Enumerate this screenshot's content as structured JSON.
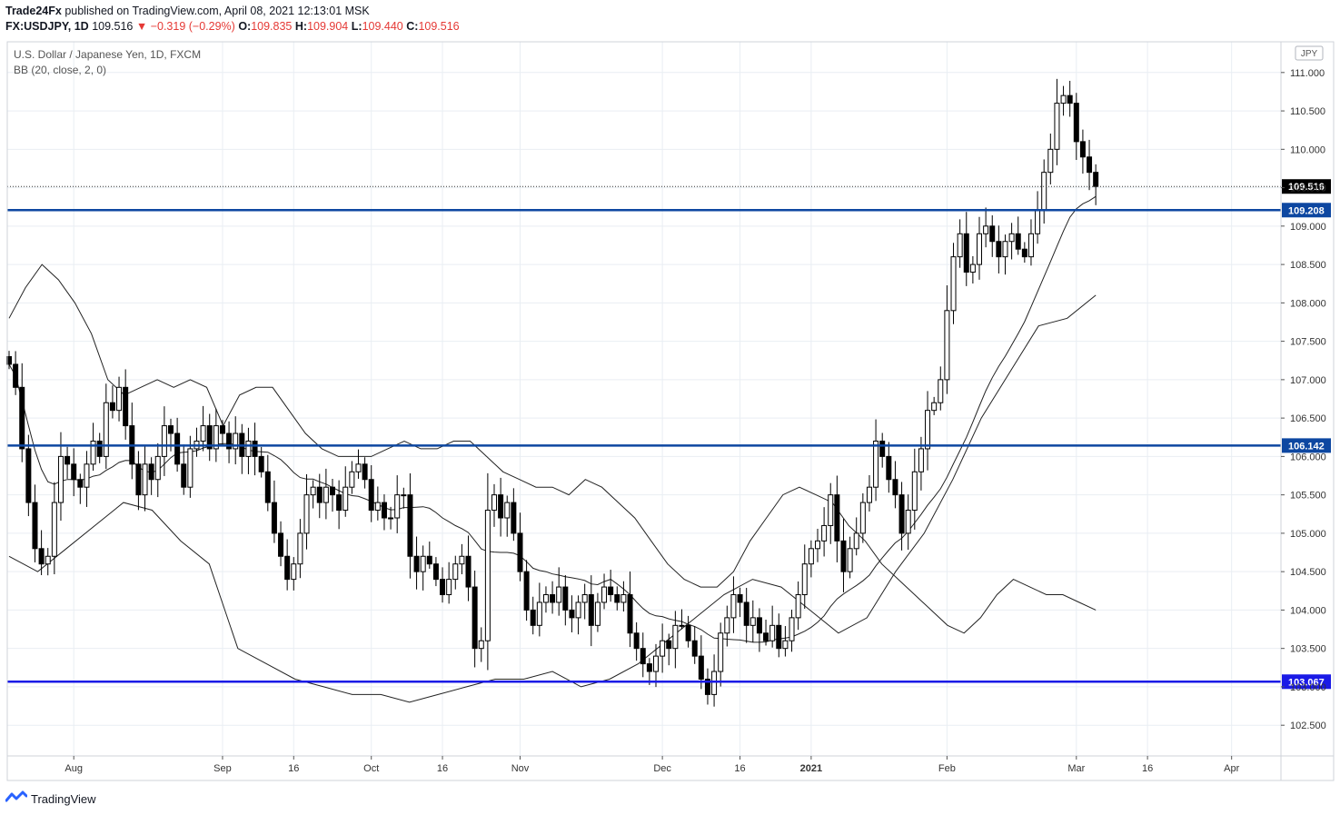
{
  "header": {
    "publisher": "Trade24Fx",
    "published_text": "published on TradingView.com, April 08, 2021 12:13:01 MSK",
    "symbol": "FX:USDJPY, 1D",
    "last": "109.516",
    "change": "▼ −0.319 (−0.29%)",
    "o_label": "O:",
    "o_value": "109.835",
    "h_label": "H:",
    "h_value": "109.904",
    "l_label": "L:",
    "l_value": "109.440",
    "c_label": "C:",
    "c_value": "109.516"
  },
  "legend": {
    "instrument": "U.S. Dollar / Japanese Yen, 1D, FXCM",
    "indicator": "BB (20, close, 2, 0)"
  },
  "footer": {
    "brand": "TradingView"
  },
  "colors": {
    "up_fill": "#ffffff",
    "down_fill": "#000000",
    "candle_line": "#000000",
    "hline": "#0d47a1",
    "hline_bottom": "#1a1ae6",
    "grid": "#e9eef3",
    "last_price_bg": "#000000"
  },
  "chart_data": {
    "type": "candlestick",
    "currency": "JPY",
    "y_ticks": [
      "111.000",
      "110.500",
      "110.000",
      "109.500",
      "109.000",
      "108.500",
      "108.000",
      "107.500",
      "107.000",
      "106.500",
      "106.000",
      "105.500",
      "105.000",
      "104.500",
      "104.000",
      "103.500",
      "103.000",
      "102.500"
    ],
    "ylim": [
      102.1,
      111.4
    ],
    "x_ticks": [
      {
        "label": "Aug",
        "i": 10
      },
      {
        "label": "Sep",
        "i": 33
      },
      {
        "label": "16",
        "i": 44
      },
      {
        "label": "Oct",
        "i": 56
      },
      {
        "label": "16",
        "i": 67
      },
      {
        "label": "Nov",
        "i": 79
      },
      {
        "label": "Dec",
        "i": 101
      },
      {
        "label": "16",
        "i": 113
      },
      {
        "label": "2021",
        "i": 124
      },
      {
        "label": "Feb",
        "i": 145
      },
      {
        "label": "Mar",
        "i": 165
      },
      {
        "label": "16",
        "i": 176
      },
      {
        "label": "Apr",
        "i": 189
      }
    ],
    "horizontal_levels": [
      {
        "value": 109.208,
        "label": "109.208"
      },
      {
        "value": 106.142,
        "label": "106.142"
      },
      {
        "value": 103.067,
        "label": "103.067"
      }
    ],
    "last_price": {
      "value": 109.516,
      "label": "109.516"
    },
    "indicator": "Bollinger Bands (20, close, 2, 0)",
    "closes": [
      107.2,
      106.9,
      106.1,
      105.4,
      104.8,
      104.6,
      104.7,
      105.4,
      106.0,
      105.9,
      105.7,
      105.6,
      105.9,
      106.2,
      106.0,
      106.7,
      106.6,
      106.9,
      106.4,
      105.9,
      105.5,
      105.9,
      105.7,
      106.0,
      106.4,
      106.3,
      105.9,
      105.6,
      106.1,
      106.2,
      106.4,
      106.1,
      106.4,
      106.3,
      106.1,
      106.3,
      106.0,
      106.2,
      106.0,
      105.8,
      105.4,
      105.0,
      104.7,
      104.4,
      104.6,
      105.0,
      105.5,
      105.6,
      105.4,
      105.6,
      105.5,
      105.3,
      105.6,
      105.8,
      105.9,
      105.7,
      105.3,
      105.4,
      105.2,
      105.2,
      105.5,
      105.5,
      104.7,
      104.5,
      104.7,
      104.6,
      104.4,
      104.2,
      104.4,
      104.6,
      104.7,
      104.3,
      103.5,
      103.6,
      105.3,
      105.5,
      105.2,
      105.4,
      105.0,
      104.5,
      104.0,
      103.8,
      104.1,
      104.2,
      104.1,
      104.3,
      104.0,
      103.9,
      104.1,
      104.2,
      103.8,
      104.1,
      104.3,
      104.2,
      104.1,
      104.2,
      103.7,
      103.5,
      103.3,
      103.2,
      103.4,
      103.6,
      103.5,
      103.8,
      103.8,
      103.6,
      103.4,
      103.1,
      102.9,
      103.2,
      103.7,
      103.9,
      104.2,
      104.1,
      103.8,
      103.9,
      103.7,
      103.6,
      103.8,
      103.5,
      103.6,
      103.9,
      104.2,
      104.6,
      104.8,
      104.9,
      105.1,
      105.5,
      104.9,
      104.5,
      104.8,
      105.0,
      105.4,
      105.6,
      106.2,
      106.0,
      105.7,
      105.5,
      105.0,
      105.3,
      105.8,
      106.1,
      106.6,
      106.7,
      107.0,
      107.9,
      108.6,
      108.9,
      108.4,
      108.5,
      108.9,
      109.0,
      108.8,
      108.6,
      108.8,
      108.9,
      108.7,
      108.6,
      108.9,
      109.2,
      109.7,
      110.0,
      110.6,
      110.7,
      110.6,
      110.1,
      109.9,
      109.7,
      109.516
    ],
    "bb_upper": [
      107.8,
      108.2,
      108.5,
      108.3,
      108.0,
      107.6,
      107.0,
      106.8,
      106.9,
      107.0,
      106.9,
      107.0,
      106.9,
      106.4,
      106.8,
      106.9,
      106.9,
      106.6,
      106.3,
      106.1,
      106.0,
      106.0,
      106.0,
      106.1,
      106.2,
      106.1,
      106.1,
      106.2,
      106.2,
      106.0,
      105.8,
      105.7,
      105.6,
      105.6,
      105.5,
      105.7,
      105.6,
      105.4,
      105.2,
      104.9,
      104.6,
      104.4,
      104.3,
      104.3,
      104.5,
      104.9,
      105.2,
      105.5,
      105.6,
      105.5,
      105.4,
      105.1,
      104.9,
      104.6,
      104.4,
      104.2,
      104.0,
      103.8,
      103.7,
      103.9,
      104.2,
      104.4,
      104.3,
      104.2,
      104.2,
      104.1,
      104.0
    ],
    "bb_lower": [
      104.7,
      104.5,
      104.8,
      105.1,
      105.4,
      105.3,
      104.9,
      104.6,
      103.5,
      103.3,
      103.1,
      103.0,
      102.9,
      102.9,
      102.8,
      102.9,
      103.0,
      103.1,
      103.1,
      103.2,
      103.0,
      103.1,
      103.3,
      103.6,
      103.9,
      104.2,
      104.4,
      104.3,
      104.0,
      103.7,
      103.9,
      104.5,
      105.0,
      105.7,
      106.5,
      107.1,
      107.7,
      107.8,
      108.1
    ]
  }
}
